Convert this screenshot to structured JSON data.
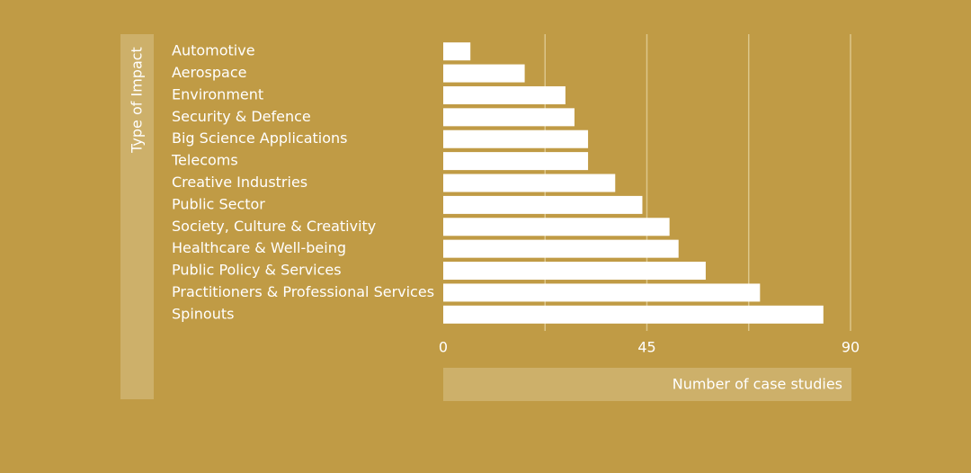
{
  "chart_data": {
    "type": "hbar",
    "ylabel": "Type of Impact",
    "xlabel": "Number of case studies",
    "categories": [
      "Automotive",
      "Aerospace",
      "Environment",
      "Security & Defence",
      "Big Science Applications",
      "Telecoms",
      "Creative Industries",
      "Public Sector",
      "Society, Culture & Creativity",
      "Healthcare & Well-being",
      "Public Policy & Services",
      "Practitioners & Professional Services",
      "Spinouts"
    ],
    "values": [
      6,
      18,
      27,
      29,
      32,
      32,
      38,
      44,
      50,
      52,
      58,
      70,
      84
    ],
    "color": "#ffffff",
    "xlim": [
      0,
      90
    ],
    "xticks": [
      0,
      45,
      90
    ],
    "minor_xticks": [
      22.5,
      67.5
    ],
    "grid": true
  }
}
